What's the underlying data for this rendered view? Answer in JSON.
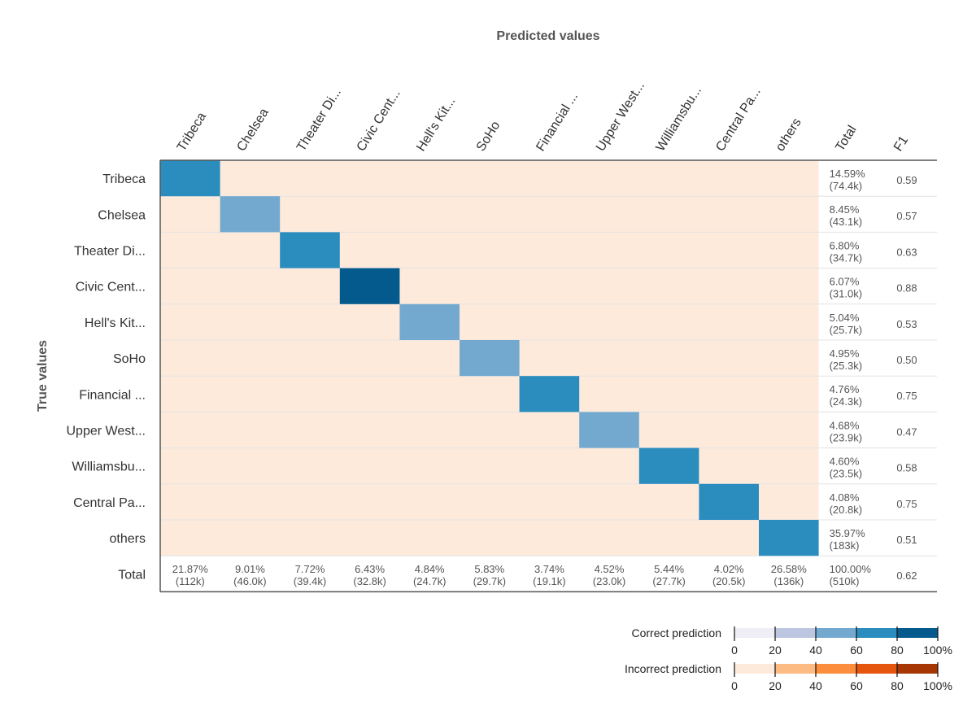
{
  "chart_data": {
    "type": "heatmap",
    "title": "Predicted values",
    "xlabel": "Predicted values",
    "ylabel": "True values",
    "columns": [
      "Tribeca",
      "Chelsea",
      "Theater Di...",
      "Civic Cent...",
      "Hell's Kit...",
      "SoHo",
      "Financial ...",
      "Upper West...",
      "Williamsbu...",
      "Central Pa...",
      "others"
    ],
    "rows": [
      "Tribeca",
      "Chelsea",
      "Theater Di...",
      "Civic Cent...",
      "Hell's Kit...",
      "SoHo",
      "Financial ...",
      "Upper West...",
      "Williamsbu...",
      "Central Pa...",
      "others"
    ],
    "total_label": "Total",
    "f1_label": "F1",
    "diagonal_percent": [
      62,
      42,
      63,
      88,
      44,
      43,
      73,
      40,
      62,
      71,
      66
    ],
    "row_totals": [
      {
        "pct": "14.59%",
        "count": "(74.4k)"
      },
      {
        "pct": "8.45%",
        "count": "(43.1k)"
      },
      {
        "pct": "6.80%",
        "count": "(34.7k)"
      },
      {
        "pct": "6.07%",
        "count": "(31.0k)"
      },
      {
        "pct": "5.04%",
        "count": "(25.7k)"
      },
      {
        "pct": "4.95%",
        "count": "(25.3k)"
      },
      {
        "pct": "4.76%",
        "count": "(24.3k)"
      },
      {
        "pct": "4.68%",
        "count": "(23.9k)"
      },
      {
        "pct": "4.60%",
        "count": "(23.5k)"
      },
      {
        "pct": "4.08%",
        "count": "(20.8k)"
      },
      {
        "pct": "35.97%",
        "count": "(183k)"
      }
    ],
    "f1": [
      "0.59",
      "0.57",
      "0.63",
      "0.88",
      "0.53",
      "0.50",
      "0.75",
      "0.47",
      "0.58",
      "0.75",
      "0.51"
    ],
    "col_totals": [
      {
        "pct": "21.87%",
        "count": "(112k)"
      },
      {
        "pct": "9.01%",
        "count": "(46.0k)"
      },
      {
        "pct": "7.72%",
        "count": "(39.4k)"
      },
      {
        "pct": "6.43%",
        "count": "(32.8k)"
      },
      {
        "pct": "4.84%",
        "count": "(24.7k)"
      },
      {
        "pct": "5.83%",
        "count": "(29.7k)"
      },
      {
        "pct": "3.74%",
        "count": "(19.1k)"
      },
      {
        "pct": "4.52%",
        "count": "(23.0k)"
      },
      {
        "pct": "5.44%",
        "count": "(27.7k)"
      },
      {
        "pct": "4.02%",
        "count": "(20.5k)"
      },
      {
        "pct": "26.58%",
        "count": "(136k)"
      }
    ],
    "grand_total": {
      "pct": "100.00%",
      "count": "(510k)"
    },
    "overall_f1": "0.62",
    "legend": {
      "correct_label": "Correct prediction",
      "incorrect_label": "Incorrect prediction",
      "ticks": [
        "0",
        "20",
        "40",
        "60",
        "80",
        "100%"
      ],
      "correct_colors": [
        "#efedf5",
        "#bcc6e0",
        "#74a9cf",
        "#2b8cbe",
        "#045a8d"
      ],
      "incorrect_colors": [
        "#feeadb",
        "#fdbb84",
        "#fc8d3c",
        "#e6550d",
        "#a63603"
      ],
      "off_diagonal_color": "#feeadb"
    }
  }
}
